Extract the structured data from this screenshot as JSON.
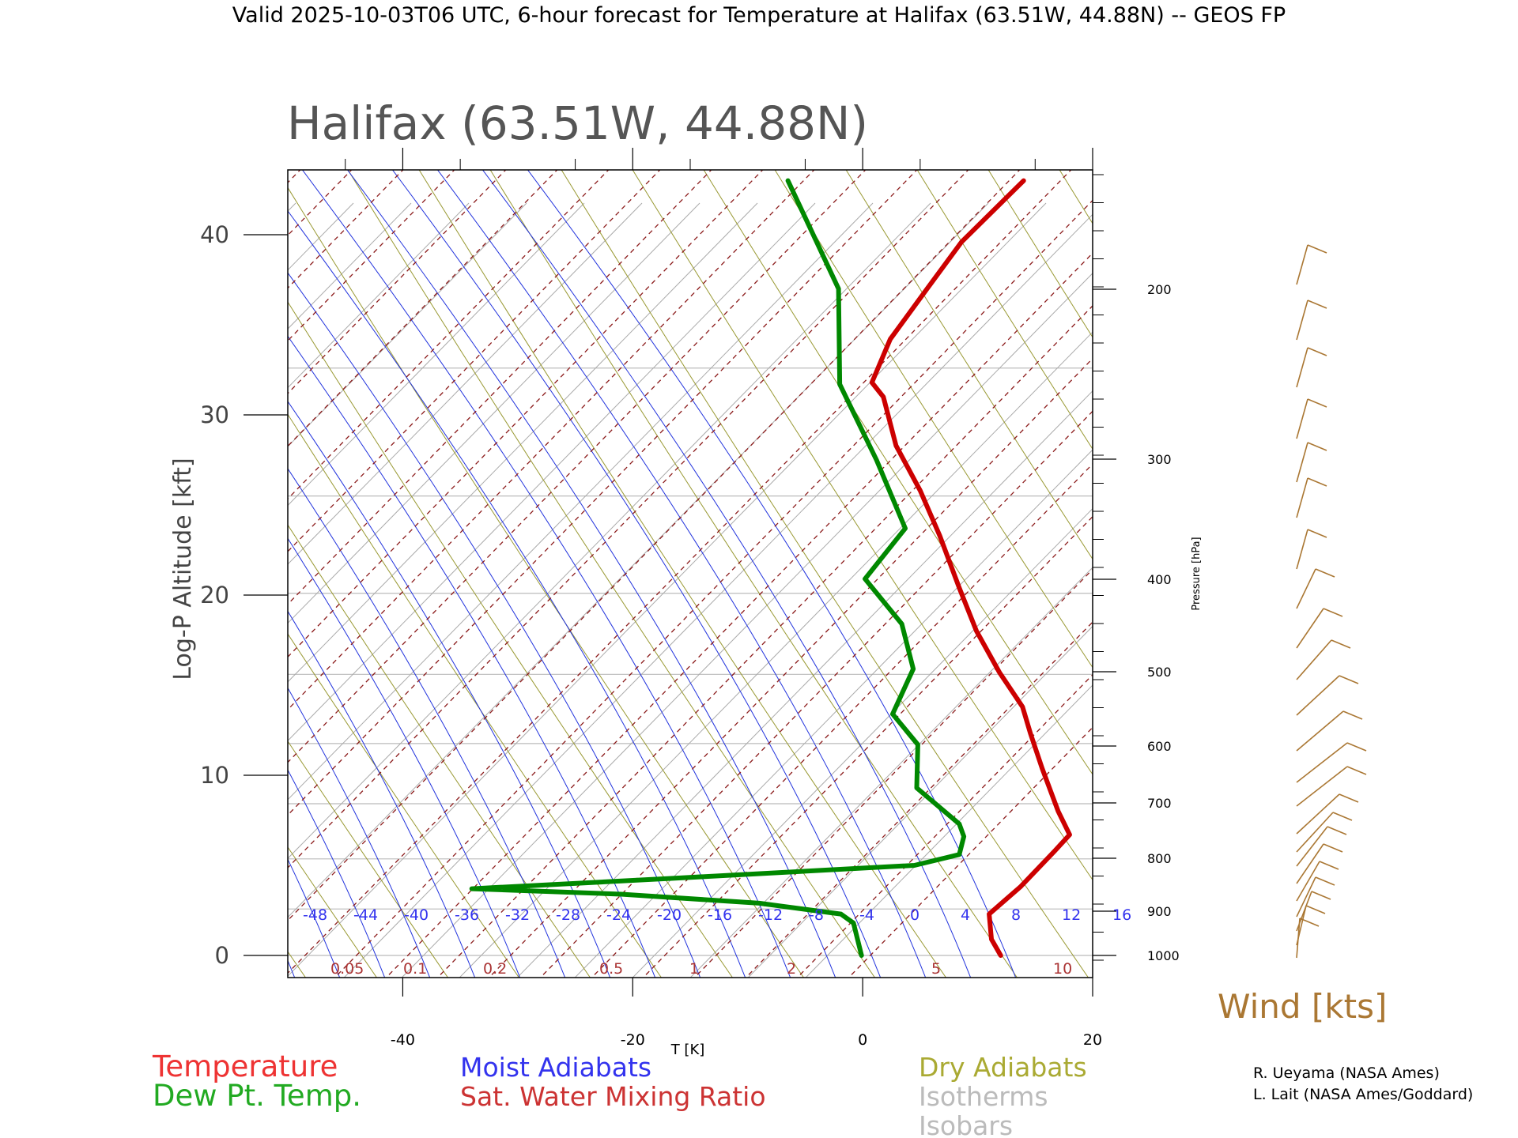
{
  "header": {
    "title": "Valid 2025-10-03T06 UTC, 6-hour forecast for Temperature at Halifax (63.51W, 44.88N) -- GEOS FP"
  },
  "chart_data": {
    "type": "line",
    "title": "Halifax (63.51W, 44.88N)",
    "xlabel": "T [K]",
    "ylabel": "Log-P Altitude [kft]",
    "y2label": "Pressure [hPa]",
    "xlim": [
      -50,
      20
    ],
    "ylim": [
      -1,
      43
    ],
    "x_ticks": [
      -40,
      -20,
      0,
      20
    ],
    "y_ticks": [
      0,
      10,
      20,
      30,
      40
    ],
    "pressure_ticks": [
      1000,
      900,
      800,
      700,
      600,
      500,
      400,
      300,
      200
    ],
    "moist_adiabat_labels": [
      "-48",
      "-44",
      "-40",
      "-36",
      "-32",
      "-28",
      "-24",
      "-20",
      "-16",
      "-12",
      "-8",
      "-4",
      "0",
      "4",
      "8",
      "12",
      "16"
    ],
    "mixing_ratio_labels": [
      "0.05",
      "0.1",
      "0.2",
      "0.5",
      "1",
      "2",
      "5",
      "10"
    ],
    "series": [
      {
        "name": "Temperature",
        "color": "#cc0000",
        "points": [
          [
            12.0,
            0.0
          ],
          [
            11.2,
            0.9
          ],
          [
            11.0,
            2.3
          ],
          [
            13.7,
            3.8
          ],
          [
            16.7,
            5.8
          ],
          [
            18.0,
            6.7
          ],
          [
            17.0,
            8.0
          ],
          [
            15.6,
            10.4
          ],
          [
            14.6,
            12.3
          ],
          [
            13.9,
            13.8
          ],
          [
            11.9,
            15.7
          ],
          [
            9.9,
            18.0
          ],
          [
            8.4,
            20.4
          ],
          [
            6.7,
            23.3
          ],
          [
            5.0,
            25.8
          ],
          [
            2.9,
            28.3
          ],
          [
            1.8,
            31.0
          ],
          [
            0.8,
            31.8
          ],
          [
            2.4,
            34.2
          ],
          [
            5.6,
            37.0
          ],
          [
            8.6,
            39.6
          ],
          [
            14.0,
            43.0
          ]
        ]
      },
      {
        "name": "Dew Pt. Temp.",
        "color": "#008800",
        "points": [
          [
            -0.1,
            0.0
          ],
          [
            -0.8,
            1.8
          ],
          [
            -1.9,
            2.3
          ],
          [
            -9.0,
            2.9
          ],
          [
            -21.0,
            3.4
          ],
          [
            -34.0,
            3.7
          ],
          [
            -16.0,
            4.3
          ],
          [
            4.5,
            5.0
          ],
          [
            8.4,
            5.6
          ],
          [
            8.8,
            6.6
          ],
          [
            8.4,
            7.3
          ],
          [
            4.7,
            9.3
          ],
          [
            4.8,
            11.7
          ],
          [
            2.6,
            13.4
          ],
          [
            4.4,
            15.9
          ],
          [
            3.4,
            18.4
          ],
          [
            0.2,
            20.9
          ],
          [
            3.7,
            23.7
          ],
          [
            1.2,
            27.5
          ],
          [
            -2.0,
            31.7
          ],
          [
            -2.1,
            37.0
          ],
          [
            -6.5,
            43.0
          ]
        ]
      }
    ],
    "legend": [
      {
        "label": "Temperature",
        "color": "#ee3333"
      },
      {
        "label": "Dew Pt. Temp.",
        "color": "#22aa22"
      },
      {
        "label": "Moist Adiabats",
        "color": "#3333ee"
      },
      {
        "label": "Sat. Water Mixing Ratio",
        "color": "#cc3333"
      },
      {
        "label": "Dry Adiabats",
        "color": "#aaaa33"
      },
      {
        "label": "Isotherms",
        "color": "#bbbbbb"
      },
      {
        "label": "Isobars",
        "color": "#bbbbbb"
      }
    ],
    "wind_label": "Wind [kts]",
    "wind_color": "#aa7733"
  },
  "credits": {
    "line1": "R. Ueyama (NASA Ames)",
    "line2": "L. Lait (NASA Ames/Goddard)"
  }
}
